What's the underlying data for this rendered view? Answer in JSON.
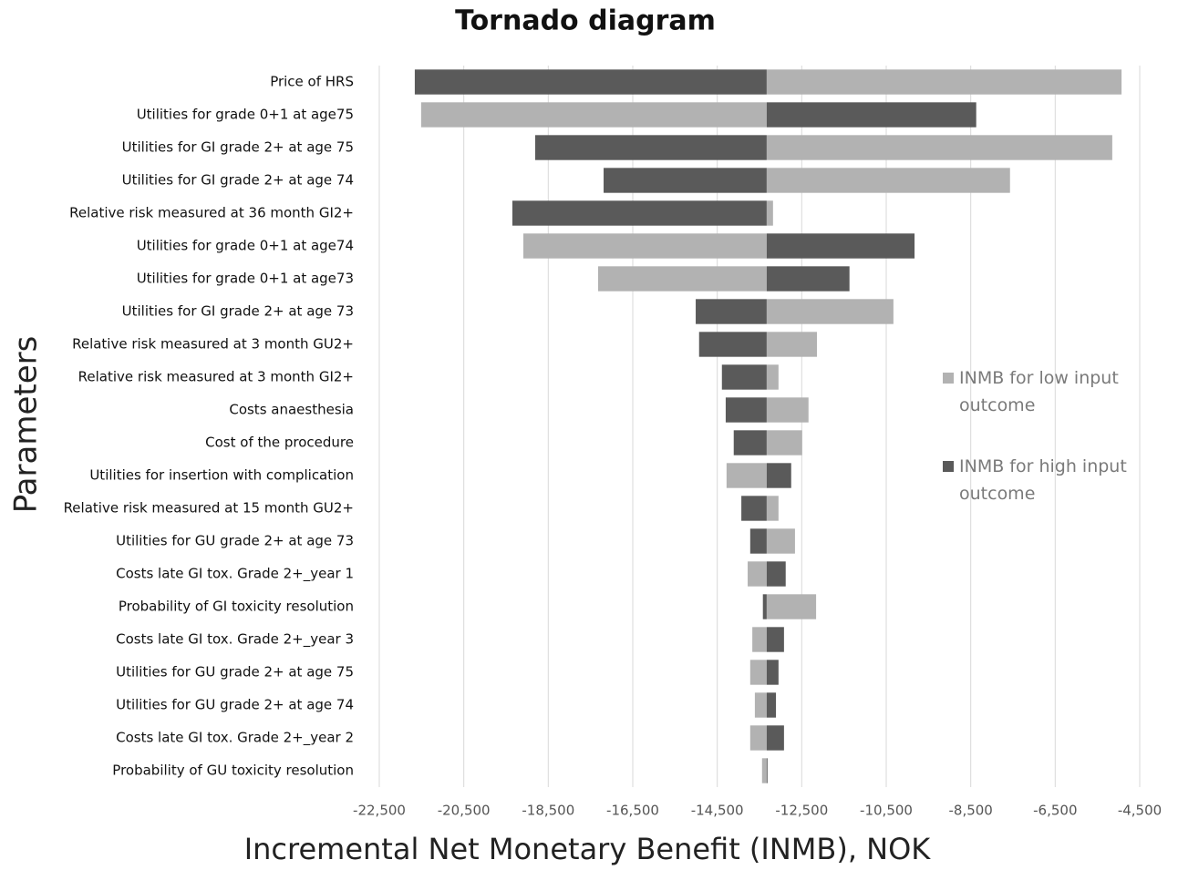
{
  "chart_data": {
    "type": "tornado",
    "title": "Tornado diagram",
    "x_label": "Incremental Net Monetary Benefit (INMB), NOK",
    "y_label": "Parameters",
    "base_value": -13330,
    "categories": [
      "Price of HRS",
      "Utilities for grade 0+1 at age75",
      "Utilities for GI grade 2+ at age 75",
      "Utilities for GI grade 2+ at age 74",
      "Relative risk measured at 36 month GI2+",
      "Utilities for grade 0+1 at age74",
      "Utilities for grade 0+1 at age73",
      "Utilities for GI grade 2+ at age 73",
      "Relative risk measured at 3 month GU2+",
      "Relative risk measured at 3 month GI2+",
      "Costs anaesthesia",
      "Cost of the procedure",
      "Utilities for insertion with complication",
      "Relative risk measured at 15 month GU2+",
      "Utilities for GU grade 2+ at age 73",
      "Costs late GI tox. Grade 2+_year 1",
      "Probability of GI toxicity resolution",
      "Costs late GI tox. Grade 2+_year 3",
      "Utilities for GU grade 2+ at age 75",
      "Utilities for GU grade 2+ at age 74",
      "Costs late GI tox. Grade 2+_year 2",
      "Probability of GU toxicity resolution"
    ],
    "series": [
      {
        "name": "INMB for low input outcome",
        "color": "#b2b2b2",
        "values": [
          -4930,
          -21510,
          -5150,
          -7570,
          -13180,
          -19090,
          -17320,
          -10330,
          -12140,
          -13050,
          -12340,
          -12490,
          -14280,
          -13050,
          -12660,
          -13780,
          -12160,
          -13670,
          -13720,
          -13610,
          -13720,
          -13440
        ]
      },
      {
        "name": "INMB for high input outcome",
        "color": "#5a5a5a",
        "values": [
          -21660,
          -8370,
          -18810,
          -17190,
          -19350,
          -9830,
          -11370,
          -15010,
          -14930,
          -14390,
          -14300,
          -14110,
          -12750,
          -13930,
          -13720,
          -12880,
          -13420,
          -12920,
          -13050,
          -13110,
          -12920,
          -13310
        ]
      }
    ],
    "xlim": [
      -22500,
      -4500
    ],
    "xticks": [
      {
        "value": -22500,
        "label": "-22,500"
      },
      {
        "value": -20500,
        "label": "-20,500"
      },
      {
        "value": -18500,
        "label": "-18,500"
      },
      {
        "value": -16500,
        "label": "-16,500"
      },
      {
        "value": -14500,
        "label": "-14,500"
      },
      {
        "value": -12500,
        "label": "-12,500"
      },
      {
        "value": -10500,
        "label": "-10,500"
      },
      {
        "value": -8500,
        "label": "-8,500"
      },
      {
        "value": -6500,
        "label": "-6,500"
      },
      {
        "value": -4500,
        "label": "-4,500"
      }
    ],
    "grid": true,
    "legend": "right"
  }
}
